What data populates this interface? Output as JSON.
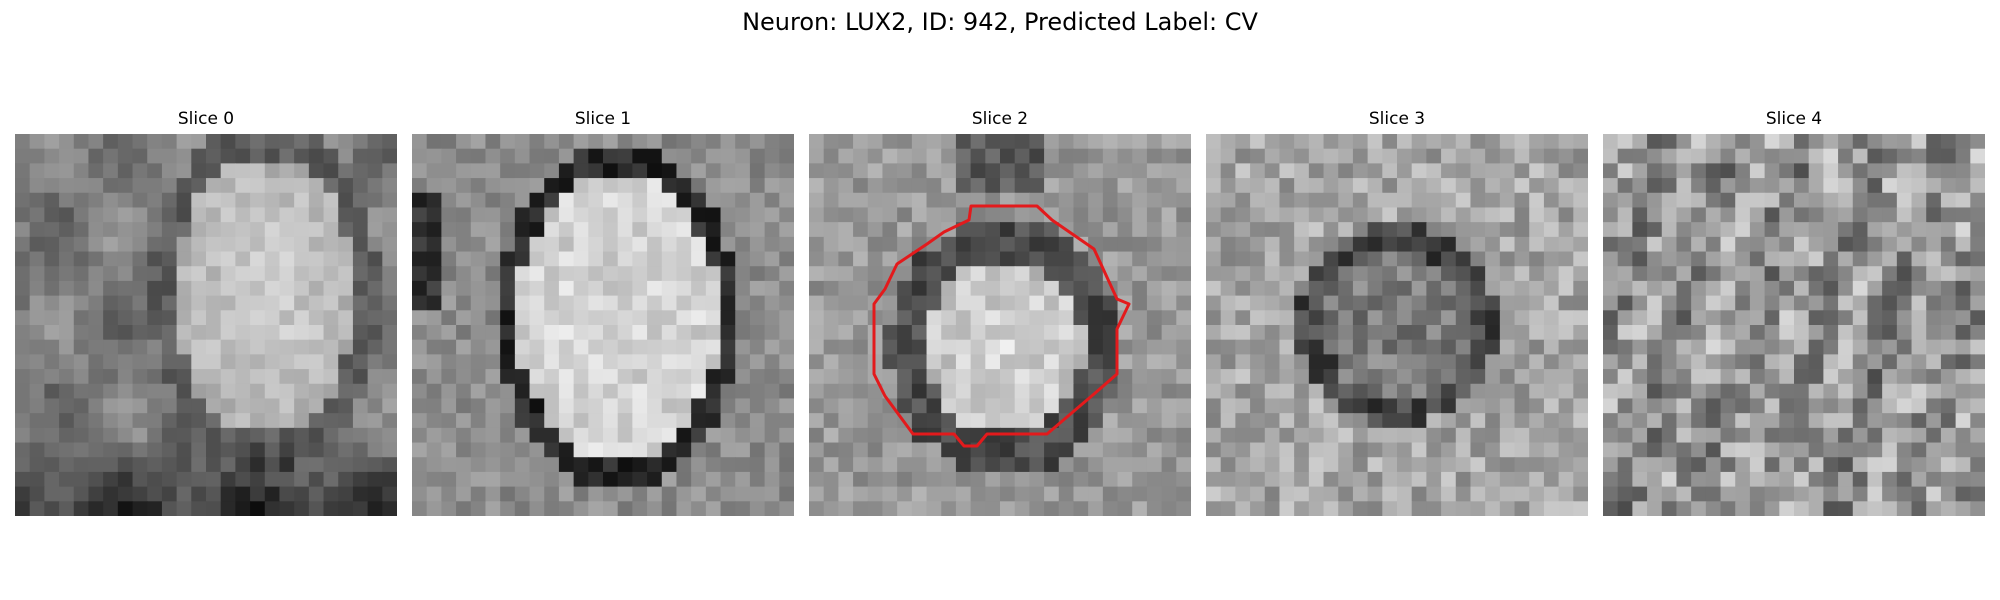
{
  "figure": {
    "title": "Neuron: LUX2, ID: 942, Predicted Label: CV"
  },
  "panels": [
    {
      "title": "Slice 0",
      "has_contour": false
    },
    {
      "title": "Slice 1",
      "has_contour": false
    },
    {
      "title": "Slice 2",
      "has_contour": true
    },
    {
      "title": "Slice 3",
      "has_contour": false
    },
    {
      "title": "Slice 4",
      "has_contour": false
    }
  ],
  "colors": {
    "contour": "#e31a1c",
    "background": "#ffffff"
  }
}
